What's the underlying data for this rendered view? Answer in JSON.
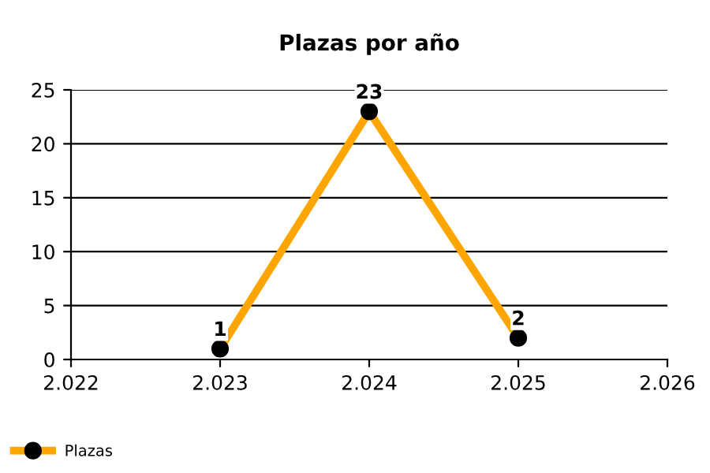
{
  "chart_data": {
    "type": "line",
    "title": "Plazas por año",
    "x": [
      2023,
      2024,
      2025
    ],
    "series": [
      {
        "name": "Plazas",
        "color": "#ffa500",
        "values": [
          1,
          23,
          2
        ]
      }
    ],
    "xlim": [
      2022,
      2026
    ],
    "xticks": [
      {
        "value": 2022,
        "label": "2.022"
      },
      {
        "value": 2023,
        "label": "2.023"
      },
      {
        "value": 2024,
        "label": "2.024"
      },
      {
        "value": 2025,
        "label": "2.025"
      },
      {
        "value": 2026,
        "label": "2.026"
      }
    ],
    "ylim": [
      0,
      25
    ],
    "yticks": [
      0,
      5,
      10,
      15,
      20,
      25
    ],
    "grid": "y",
    "legend": "bottom left",
    "marker": "circle",
    "line_style": "solid",
    "data_labels": true
  }
}
